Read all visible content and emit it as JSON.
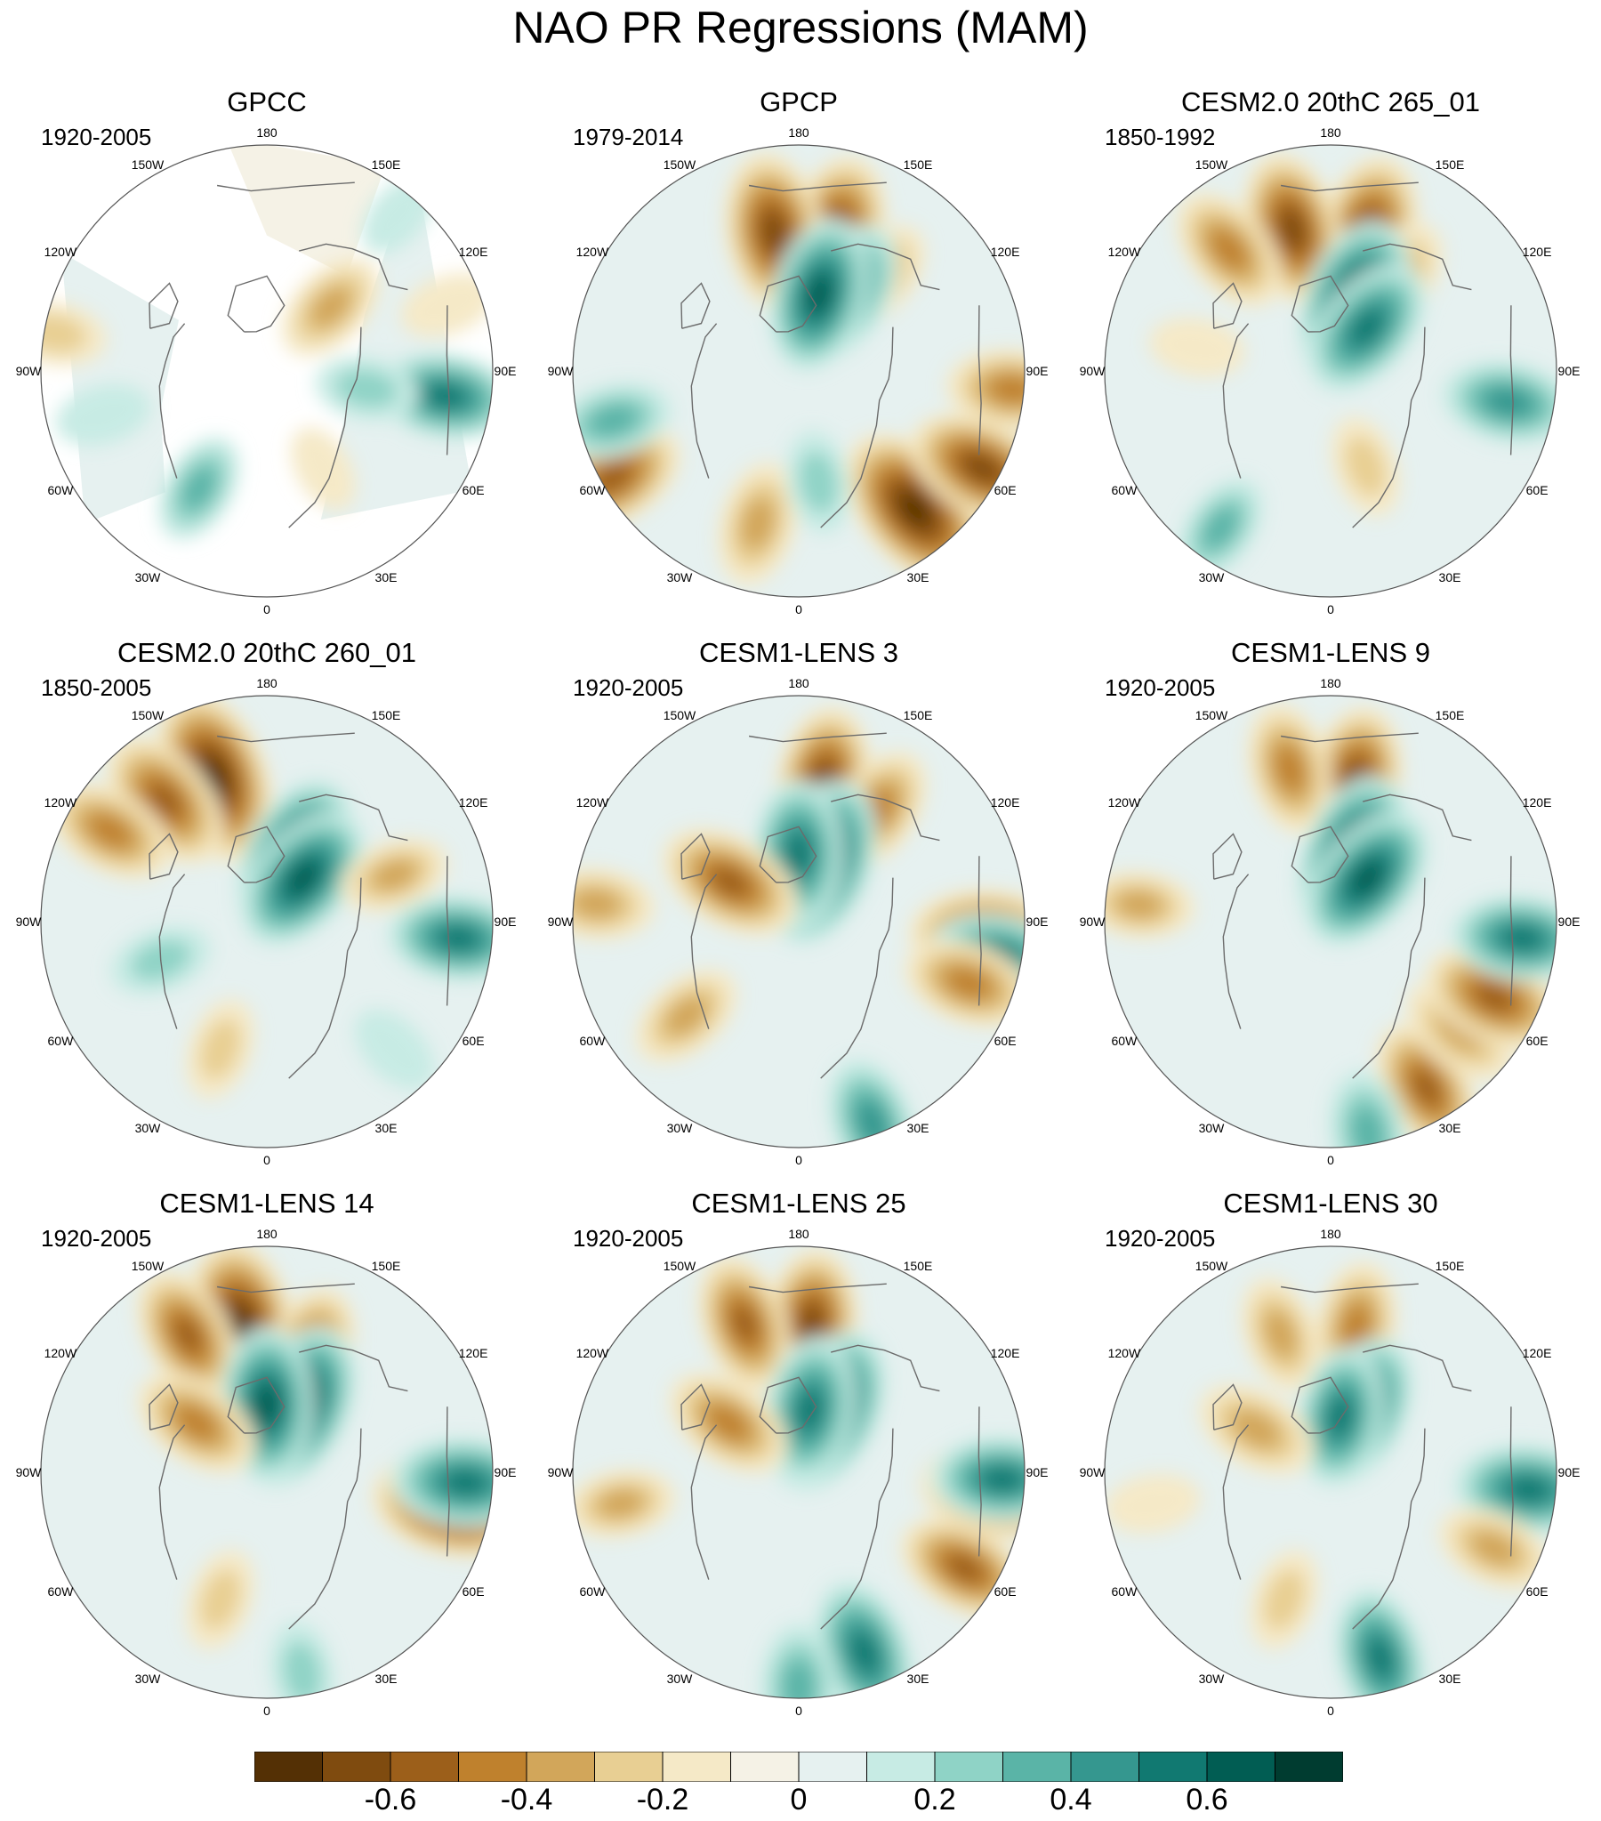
{
  "title": "NAO PR Regressions (MAM)",
  "longitude_labels": [
    "180",
    "150E",
    "120E",
    "90E",
    "60E",
    "30E",
    "0",
    "30W",
    "60W",
    "90W",
    "120W",
    "150W"
  ],
  "panels": [
    {
      "title": "GPCC",
      "period": "1920-2005",
      "land_only": true,
      "blobs": [
        [
          45,
          0.4,
          -0.3
        ],
        [
          40,
          0.9,
          0.1
        ],
        [
          70,
          0.85,
          -0.15
        ],
        [
          98,
          0.8,
          0.45
        ],
        [
          100,
          0.45,
          0.2
        ],
        [
          150,
          0.5,
          -0.1
        ],
        [
          280,
          0.95,
          -0.2
        ],
        [
          255,
          0.75,
          0.15
        ],
        [
          210,
          0.6,
          0.25
        ]
      ]
    },
    {
      "title": "GPCP",
      "period": "1979-2014",
      "land_only": false,
      "blobs": [
        [
          140,
          0.8,
          -0.7
        ],
        [
          118,
          0.92,
          -0.55
        ],
        [
          95,
          0.95,
          -0.4
        ],
        [
          15,
          0.62,
          -0.6
        ],
        [
          350,
          0.62,
          -0.6
        ],
        [
          40,
          0.55,
          -0.3
        ],
        [
          240,
          0.95,
          -0.5
        ],
        [
          195,
          0.7,
          -0.35
        ],
        [
          30,
          0.4,
          0.5
        ],
        [
          15,
          0.35,
          0.55
        ],
        [
          255,
          0.85,
          0.3
        ],
        [
          170,
          0.5,
          0.2
        ]
      ]
    },
    {
      "title": "CESM2.0 20thC 265_01",
      "period": "1850-1992",
      "land_only": false,
      "blobs": [
        [
          15,
          0.62,
          -0.6
        ],
        [
          345,
          0.65,
          -0.55
        ],
        [
          320,
          0.7,
          -0.4
        ],
        [
          35,
          0.5,
          -0.35
        ],
        [
          20,
          0.32,
          0.65
        ],
        [
          40,
          0.25,
          0.5
        ],
        [
          100,
          0.8,
          0.4
        ],
        [
          215,
          0.85,
          0.25
        ],
        [
          160,
          0.45,
          -0.2
        ],
        [
          280,
          0.6,
          -0.15
        ]
      ]
    },
    {
      "title": "CESM2.0 20thC 260_01",
      "period": "1850-2005",
      "land_only": false,
      "blobs": [
        [
          340,
          0.68,
          -0.7
        ],
        [
          320,
          0.7,
          -0.5
        ],
        [
          300,
          0.8,
          -0.4
        ],
        [
          25,
          0.3,
          0.65
        ],
        [
          40,
          0.25,
          0.55
        ],
        [
          95,
          0.85,
          0.45
        ],
        [
          70,
          0.6,
          -0.25
        ],
        [
          200,
          0.6,
          -0.2
        ],
        [
          250,
          0.5,
          0.2
        ],
        [
          135,
          0.8,
          0.15
        ]
      ]
    },
    {
      "title": "CESM1-LENS 3",
      "period": "1920-2005",
      "land_only": false,
      "blobs": [
        [
          10,
          0.62,
          -0.55
        ],
        [
          35,
          0.6,
          -0.4
        ],
        [
          20,
          0.28,
          0.65
        ],
        [
          0,
          0.3,
          0.5
        ],
        [
          160,
          0.95,
          0.4
        ],
        [
          95,
          0.85,
          -0.6
        ],
        [
          100,
          0.9,
          0.45
        ],
        [
          110,
          0.8,
          -0.4
        ],
        [
          230,
          0.65,
          -0.3
        ],
        [
          275,
          0.9,
          -0.3
        ],
        [
          300,
          0.35,
          -0.5
        ]
      ]
    },
    {
      "title": "CESM1-LENS 9",
      "period": "1920-2005",
      "land_only": false,
      "blobs": [
        [
          10,
          0.62,
          -0.55
        ],
        [
          345,
          0.7,
          -0.4
        ],
        [
          20,
          0.3,
          0.65
        ],
        [
          40,
          0.25,
          0.55
        ],
        [
          150,
          0.85,
          -0.45
        ],
        [
          130,
          0.75,
          -0.35
        ],
        [
          115,
          0.8,
          -0.5
        ],
        [
          95,
          0.85,
          0.45
        ],
        [
          170,
          0.95,
          0.35
        ],
        [
          275,
          0.85,
          -0.25
        ]
      ]
    },
    {
      "title": "CESM1-LENS 14",
      "period": "1920-2005",
      "land_only": false,
      "blobs": [
        [
          350,
          0.65,
          -0.7
        ],
        [
          20,
          0.55,
          -0.45
        ],
        [
          330,
          0.7,
          -0.45
        ],
        [
          25,
          0.32,
          0.65
        ],
        [
          0,
          0.3,
          0.55
        ],
        [
          100,
          0.85,
          -0.65
        ],
        [
          93,
          0.88,
          0.5
        ],
        [
          305,
          0.38,
          -0.4
        ],
        [
          200,
          0.6,
          -0.2
        ],
        [
          170,
          0.9,
          0.2
        ]
      ]
    },
    {
      "title": "CESM1-LENS 25",
      "period": "1920-2005",
      "land_only": false,
      "blobs": [
        [
          5,
          0.65,
          -0.55
        ],
        [
          340,
          0.7,
          -0.45
        ],
        [
          25,
          0.3,
          0.65
        ],
        [
          10,
          0.28,
          0.5
        ],
        [
          160,
          0.85,
          0.5
        ],
        [
          180,
          0.95,
          0.35
        ],
        [
          120,
          0.85,
          -0.45
        ],
        [
          95,
          0.9,
          -0.6
        ],
        [
          92,
          0.9,
          0.45
        ],
        [
          305,
          0.38,
          -0.4
        ],
        [
          260,
          0.8,
          -0.25
        ]
      ]
    },
    {
      "title": "CESM1-LENS 30",
      "period": "1920-2005",
      "land_only": false,
      "blobs": [
        [
          10,
          0.65,
          -0.4
        ],
        [
          340,
          0.65,
          -0.3
        ],
        [
          25,
          0.3,
          0.55
        ],
        [
          10,
          0.25,
          0.45
        ],
        [
          95,
          0.88,
          0.5
        ],
        [
          165,
          0.85,
          0.45
        ],
        [
          115,
          0.8,
          -0.3
        ],
        [
          300,
          0.38,
          -0.35
        ],
        [
          200,
          0.6,
          -0.2
        ],
        [
          260,
          0.8,
          -0.15
        ]
      ]
    }
  ],
  "colorbar": {
    "colors": [
      "#543005",
      "#7f4b0f",
      "#9c5f1a",
      "#bf812d",
      "#d2a65a",
      "#e8cf93",
      "#f5e9c7",
      "#f5f2e6",
      "#e6f1f0",
      "#c7ebe4",
      "#8fd3c6",
      "#5ab4a7",
      "#35978f",
      "#117971",
      "#015d53",
      "#003c30"
    ],
    "levels": [
      -0.7,
      -0.6,
      -0.5,
      -0.4,
      -0.3,
      -0.2,
      -0.1,
      0,
      0.1,
      0.2,
      0.3,
      0.4,
      0.5,
      0.6,
      0.7
    ],
    "labels": [
      "-0.6",
      "-0.4",
      "-0.2",
      "0",
      "0.2",
      "0.4",
      "0.6"
    ],
    "label_values": [
      -0.6,
      -0.4,
      -0.2,
      0,
      0.2,
      0.4,
      0.6
    ]
  },
  "coastline_color": "#6b6b6b"
}
